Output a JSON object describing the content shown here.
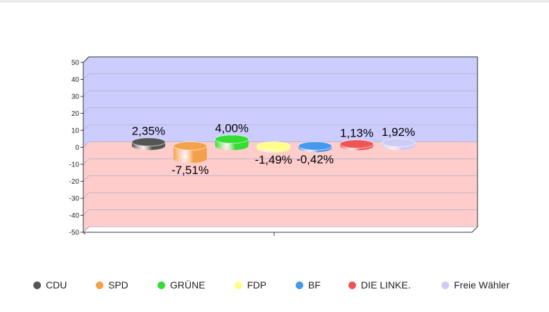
{
  "chart_data": {
    "type": "bar",
    "categories": [
      "CDU",
      "SPD",
      "GRÜNE",
      "FDP",
      "BF",
      "DIE LINKE.",
      "Freie Wähler"
    ],
    "values": [
      2.35,
      -7.51,
      4.0,
      -1.49,
      -0.42,
      1.13,
      1.92
    ],
    "data_labels": [
      "2,35%",
      "-7,51%",
      "4,00%",
      "-1,49%",
      "-0,42%",
      "1,13%",
      "1,92%"
    ],
    "colors": [
      "#555555",
      "#f5a04a",
      "#33dd33",
      "#ffff88",
      "#4499ee",
      "#ee5555",
      "#ccccf5"
    ],
    "ylim": [
      -50,
      50
    ],
    "yticks": [
      "50",
      "40",
      "30",
      "20",
      "10",
      "0",
      "-10",
      "-20",
      "-30",
      "-40",
      "-50"
    ],
    "positive_band_color": "#ccccff",
    "negative_band_color": "#ffcccc",
    "grid": true,
    "legend_position": "bottom"
  }
}
